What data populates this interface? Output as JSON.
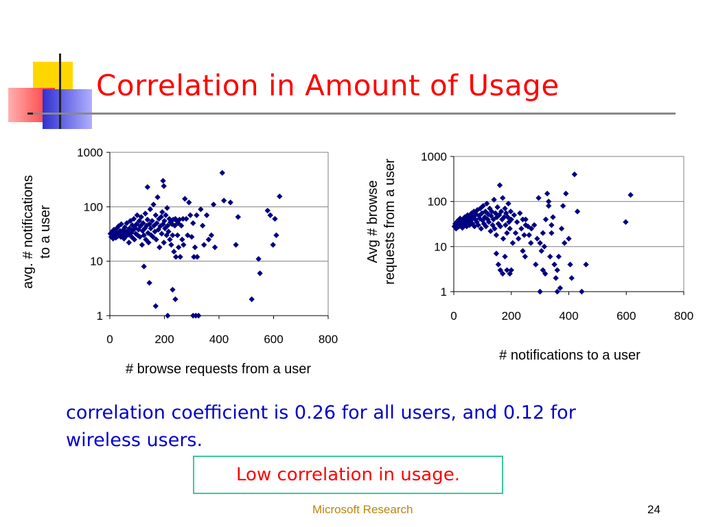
{
  "slide": {
    "title": "Correlation in Amount of Usage",
    "caption": "correlation coefficient is 0.26 for all users, and 0.12 for wireless users.",
    "boxed_note": "Low correlation in usage.",
    "footer": "Microsoft Research",
    "page_number": "24",
    "colors": {
      "title": "#ff0000",
      "caption": "#0000cc",
      "note_border": "#33cc99",
      "marker": "#000080",
      "footer": "#b8860b"
    }
  },
  "chart_data": [
    {
      "type": "scatter",
      "xlabel": "# browse requests from a user",
      "ylabel": "avg. # notifications to a user",
      "yscale": "log",
      "xlim": [
        0,
        800
      ],
      "ylim": [
        1,
        1000
      ],
      "xticks": [
        "0",
        "200",
        "400",
        "600",
        "800"
      ],
      "yticks": [
        "1",
        "10",
        "100",
        "1000"
      ],
      "grid": "horizontal",
      "marker": "diamond",
      "points": [
        [
          2,
          32
        ],
        [
          5,
          28
        ],
        [
          8,
          35
        ],
        [
          10,
          30
        ],
        [
          12,
          26
        ],
        [
          15,
          38
        ],
        [
          18,
          30
        ],
        [
          20,
          34
        ],
        [
          22,
          27
        ],
        [
          25,
          40
        ],
        [
          28,
          33
        ],
        [
          30,
          29
        ],
        [
          32,
          44
        ],
        [
          35,
          31
        ],
        [
          38,
          36
        ],
        [
          40,
          28
        ],
        [
          42,
          48
        ],
        [
          45,
          34
        ],
        [
          48,
          30
        ],
        [
          50,
          38
        ],
        [
          52,
          26
        ],
        [
          55,
          42
        ],
        [
          58,
          33
        ],
        [
          60,
          29
        ],
        [
          62,
          50
        ],
        [
          65,
          36
        ],
        [
          68,
          31
        ],
        [
          70,
          22
        ],
        [
          72,
          40
        ],
        [
          75,
          55
        ],
        [
          78,
          33
        ],
        [
          80,
          28
        ],
        [
          82,
          46
        ],
        [
          85,
          37
        ],
        [
          88,
          60
        ],
        [
          90,
          25
        ],
        [
          92,
          41
        ],
        [
          95,
          32
        ],
        [
          98,
          48
        ],
        [
          100,
          70
        ],
        [
          102,
          30
        ],
        [
          105,
          38
        ],
        [
          108,
          55
        ],
        [
          110,
          28
        ],
        [
          112,
          44
        ],
        [
          115,
          65
        ],
        [
          118,
          20
        ],
        [
          120,
          36
        ],
        [
          122,
          50
        ],
        [
          125,
          30
        ],
        [
          128,
          40
        ],
        [
          130,
          75
        ],
        [
          132,
          25
        ],
        [
          135,
          45
        ],
        [
          138,
          58
        ],
        [
          140,
          33
        ],
        [
          142,
          22
        ],
        [
          145,
          48
        ],
        [
          148,
          90
        ],
        [
          150,
          40
        ],
        [
          152,
          30
        ],
        [
          155,
          55
        ],
        [
          158,
          28
        ],
        [
          160,
          110
        ],
        [
          162,
          45
        ],
        [
          165,
          35
        ],
        [
          168,
          70
        ],
        [
          170,
          25
        ],
        [
          172,
          50
        ],
        [
          175,
          150
        ],
        [
          178,
          38
        ],
        [
          180,
          60
        ],
        [
          182,
          18
        ],
        [
          185,
          44
        ],
        [
          188,
          65
        ],
        [
          190,
          32
        ],
        [
          192,
          80
        ],
        [
          195,
          48
        ],
        [
          198,
          22
        ],
        [
          200,
          55
        ],
        [
          202,
          40
        ],
        [
          205,
          70
        ],
        [
          208,
          30
        ],
        [
          210,
          95
        ],
        [
          212,
          45
        ],
        [
          215,
          35
        ],
        [
          218,
          60
        ],
        [
          220,
          25
        ],
        [
          222,
          52
        ],
        [
          225,
          20
        ],
        [
          228,
          48
        ],
        [
          230,
          30
        ],
        [
          232,
          58
        ],
        [
          235,
          15
        ],
        [
          238,
          45
        ],
        [
          240,
          60
        ],
        [
          242,
          12
        ],
        [
          245,
          55
        ],
        [
          248,
          30
        ],
        [
          250,
          50
        ],
        [
          252,
          18
        ],
        [
          255,
          58
        ],
        [
          258,
          12
        ],
        [
          262,
          45
        ],
        [
          265,
          25
        ],
        [
          268,
          60
        ],
        [
          270,
          20
        ],
        [
          275,
          140
        ],
        [
          280,
          60
        ],
        [
          285,
          30
        ],
        [
          290,
          120
        ],
        [
          295,
          70
        ],
        [
          300,
          28
        ],
        [
          305,
          50
        ],
        [
          308,
          12
        ],
        [
          312,
          18
        ],
        [
          318,
          70
        ],
        [
          320,
          12
        ],
        [
          125,
          8
        ],
        [
          138,
          230
        ],
        [
          145,
          4
        ],
        [
          168,
          1.5
        ],
        [
          195,
          300
        ],
        [
          198,
          240
        ],
        [
          212,
          1
        ],
        [
          230,
          3
        ],
        [
          240,
          2
        ],
        [
          305,
          1
        ],
        [
          315,
          1
        ],
        [
          325,
          1
        ],
        [
          412,
          420
        ],
        [
          418,
          130
        ],
        [
          442,
          120
        ],
        [
          462,
          20
        ],
        [
          470,
          65
        ],
        [
          520,
          2
        ],
        [
          545,
          11
        ],
        [
          550,
          6
        ],
        [
          578,
          85
        ],
        [
          588,
          70
        ],
        [
          598,
          20
        ],
        [
          605,
          60
        ],
        [
          610,
          30
        ],
        [
          622,
          155
        ],
        [
          380,
          110
        ],
        [
          385,
          18
        ],
        [
          372,
          30
        ],
        [
          355,
          70
        ],
        [
          340,
          45
        ],
        [
          345,
          20
        ],
        [
          362,
          25
        ],
        [
          333,
          90
        ]
      ]
    },
    {
      "type": "scatter",
      "xlabel": "# notifications to a user",
      "ylabel": "Avg # browse requests from a user",
      "yscale": "log",
      "xlim": [
        0,
        800
      ],
      "ylim": [
        1,
        1000
      ],
      "xticks": [
        "0",
        "200",
        "400",
        "600",
        "800"
      ],
      "yticks": [
        "1",
        "10",
        "100",
        "1000"
      ],
      "grid": "horizontal",
      "marker": "diamond",
      "points": [
        [
          2,
          28
        ],
        [
          5,
          32
        ],
        [
          8,
          25
        ],
        [
          10,
          35
        ],
        [
          12,
          30
        ],
        [
          15,
          38
        ],
        [
          18,
          28
        ],
        [
          20,
          34
        ],
        [
          22,
          42
        ],
        [
          25,
          30
        ],
        [
          28,
          36
        ],
        [
          30,
          26
        ],
        [
          32,
          40
        ],
        [
          35,
          33
        ],
        [
          38,
          45
        ],
        [
          40,
          30
        ],
        [
          42,
          38
        ],
        [
          45,
          28
        ],
        [
          48,
          50
        ],
        [
          50,
          35
        ],
        [
          52,
          42
        ],
        [
          55,
          30
        ],
        [
          58,
          48
        ],
        [
          60,
          38
        ],
        [
          62,
          55
        ],
        [
          65,
          32
        ],
        [
          68,
          45
        ],
        [
          70,
          60
        ],
        [
          72,
          28
        ],
        [
          75,
          40
        ],
        [
          78,
          52
        ],
        [
          80,
          35
        ],
        [
          82,
          65
        ],
        [
          85,
          30
        ],
        [
          88,
          48
        ],
        [
          90,
          42
        ],
        [
          92,
          70
        ],
        [
          95,
          25
        ],
        [
          98,
          55
        ],
        [
          100,
          38
        ],
        [
          102,
          80
        ],
        [
          105,
          32
        ],
        [
          108,
          45
        ],
        [
          110,
          60
        ],
        [
          112,
          28
        ],
        [
          115,
          90
        ],
        [
          118,
          40
        ],
        [
          120,
          52
        ],
        [
          122,
          35
        ],
        [
          125,
          70
        ],
        [
          128,
          22
        ],
        [
          130,
          48
        ],
        [
          132,
          60
        ],
        [
          135,
          30
        ],
        [
          138,
          40
        ],
        [
          140,
          110
        ],
        [
          142,
          25
        ],
        [
          145,
          55
        ],
        [
          148,
          18
        ],
        [
          150,
          45
        ],
        [
          152,
          75
        ],
        [
          155,
          32
        ],
        [
          158,
          50
        ],
        [
          160,
          230
        ],
        [
          162,
          28
        ],
        [
          165,
          60
        ],
        [
          168,
          40
        ],
        [
          170,
          120
        ],
        [
          172,
          15
        ],
        [
          175,
          45
        ],
        [
          178,
          70
        ],
        [
          180,
          30
        ],
        [
          182,
          55
        ],
        [
          185,
          20
        ],
        [
          188,
          45
        ],
        [
          190,
          90
        ],
        [
          192,
          35
        ],
        [
          195,
          25
        ],
        [
          198,
          60
        ],
        [
          200,
          40
        ],
        [
          205,
          12
        ],
        [
          210,
          50
        ],
        [
          215,
          20
        ],
        [
          220,
          35
        ],
        [
          225,
          15
        ],
        [
          230,
          55
        ],
        [
          235,
          25
        ],
        [
          240,
          40
        ],
        [
          245,
          18
        ],
        [
          250,
          30
        ],
        [
          148,
          7
        ],
        [
          155,
          4
        ],
        [
          162,
          3
        ],
        [
          170,
          2.5
        ],
        [
          178,
          6
        ],
        [
          185,
          3
        ],
        [
          200,
          3
        ],
        [
          195,
          2.5
        ],
        [
          270,
          25
        ],
        [
          280,
          30
        ],
        [
          290,
          15
        ],
        [
          300,
          12
        ],
        [
          305,
          8
        ],
        [
          310,
          20
        ],
        [
          315,
          10
        ],
        [
          320,
          40
        ],
        [
          325,
          150
        ],
        [
          330,
          80
        ],
        [
          335,
          6
        ],
        [
          340,
          30
        ],
        [
          345,
          45
        ],
        [
          350,
          4
        ],
        [
          355,
          2
        ],
        [
          360,
          3
        ],
        [
          365,
          6
        ],
        [
          370,
          1.2
        ],
        [
          375,
          25
        ],
        [
          380,
          80
        ],
        [
          385,
          12
        ],
        [
          390,
          150
        ],
        [
          295,
          120
        ],
        [
          300,
          1
        ],
        [
          285,
          4
        ],
        [
          310,
          3
        ],
        [
          318,
          2.5
        ],
        [
          330,
          100
        ],
        [
          340,
          20
        ],
        [
          400,
          15
        ],
        [
          405,
          4
        ],
        [
          420,
          400
        ],
        [
          430,
          60
        ],
        [
          445,
          1
        ],
        [
          460,
          4
        ],
        [
          598,
          35
        ],
        [
          615,
          140
        ],
        [
          410,
          2
        ],
        [
          360,
          1
        ],
        [
          250,
          40
        ],
        [
          258,
          28
        ],
        [
          262,
          18
        ],
        [
          268,
          12
        ],
        [
          240,
          8
        ],
        [
          248,
          6
        ]
      ]
    }
  ]
}
